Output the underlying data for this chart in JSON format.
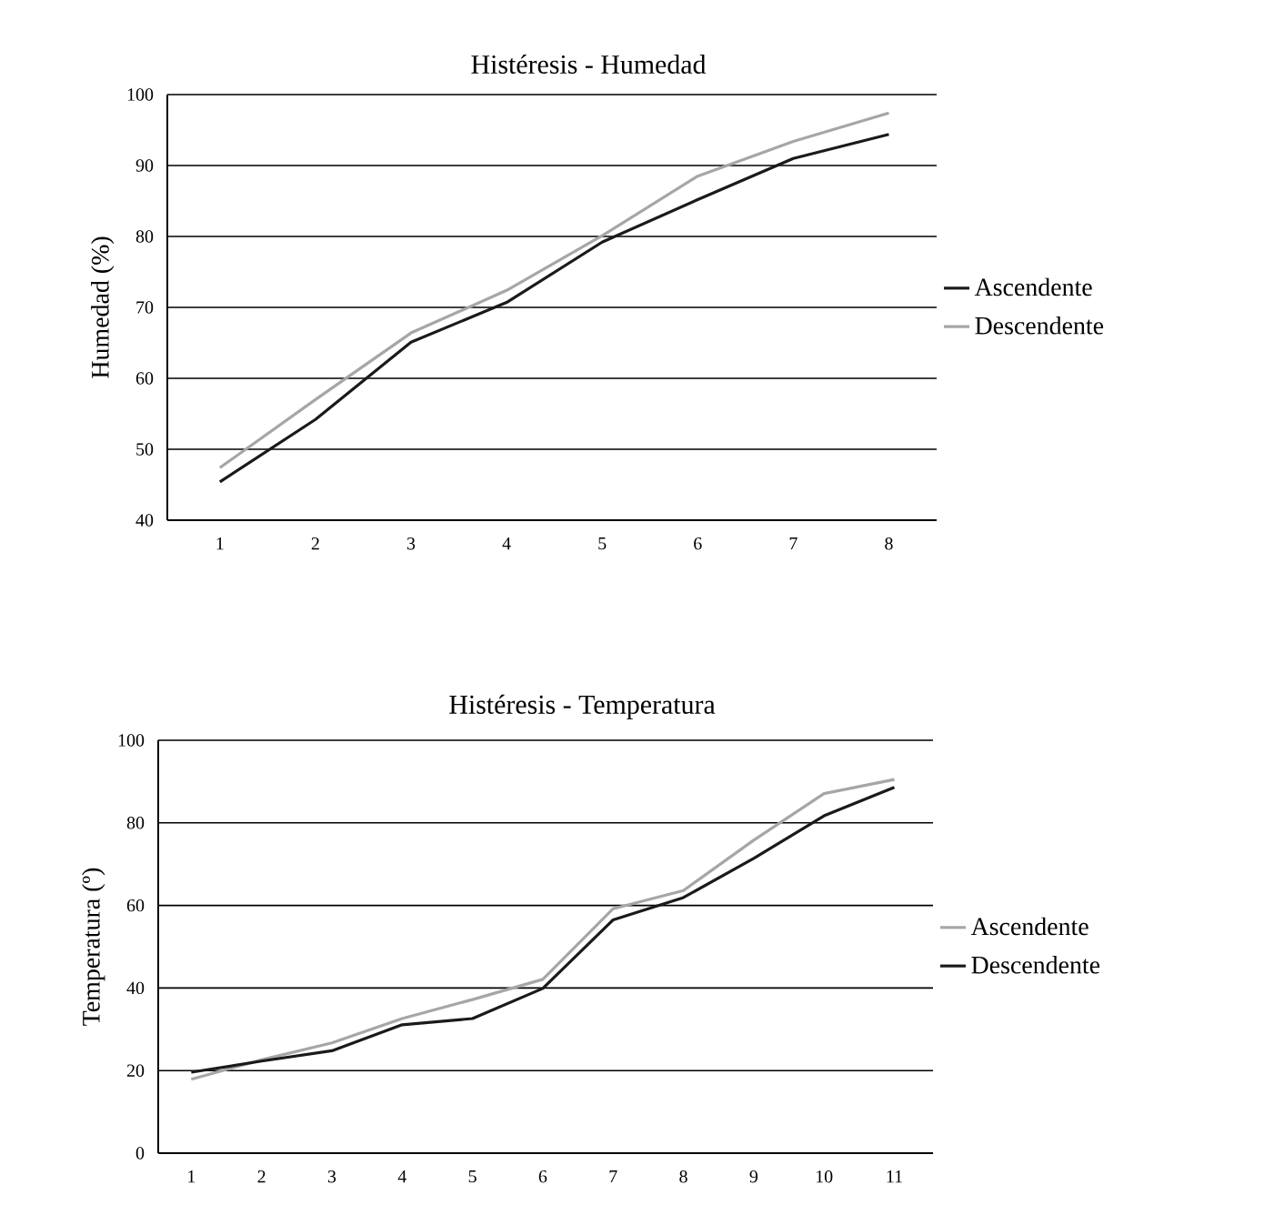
{
  "chart_data": [
    {
      "type": "line",
      "title": "Histéresis - Humedad",
      "ylabel": "Humedad (%)",
      "categories": [
        "1",
        "2",
        "3",
        "4",
        "5",
        "6",
        "7",
        "8"
      ],
      "series": [
        {
          "name": "Ascendente",
          "color": "#1a1a1a",
          "values": [
            45.4,
            54.2,
            65.1,
            70.7,
            79.2,
            85.2,
            91,
            94.4
          ]
        },
        {
          "name": "Descendente",
          "color": "#a6a6a6",
          "values": [
            47.4,
            57,
            66.4,
            72.4,
            80.1,
            88.5,
            93.4,
            97.4
          ]
        }
      ],
      "ylim": [
        40,
        100
      ],
      "yticks": [
        40,
        50,
        60,
        70,
        80,
        90,
        100
      ],
      "grid": "y",
      "legend": "right",
      "marker": "none",
      "line_style": "solid"
    },
    {
      "type": "line",
      "title": "Histéresis - Temperatura",
      "ylabel": "Temperatura (º)",
      "categories": [
        "1",
        "2",
        "3",
        "4",
        "5",
        "6",
        "7",
        "8",
        "9",
        "10",
        "11"
      ],
      "series": [
        {
          "name": "Ascendente",
          "color": "#a6a6a6",
          "values": [
            17.9,
            22.6,
            26.7,
            32.6,
            37.2,
            42.1,
            59.2,
            63.6,
            75.8,
            87.1,
            90.5
          ]
        },
        {
          "name": "Descendente",
          "color": "#1a1a1a",
          "values": [
            19.6,
            22.3,
            24.8,
            31.1,
            32.6,
            39.9,
            56.5,
            61.9,
            71.4,
            81.7,
            88.6
          ]
        }
      ],
      "ylim": [
        0,
        100
      ],
      "yticks": [
        0,
        20,
        40,
        60,
        80,
        100
      ],
      "grid": "y",
      "legend": "right",
      "marker": "none",
      "line_style": "solid"
    }
  ]
}
